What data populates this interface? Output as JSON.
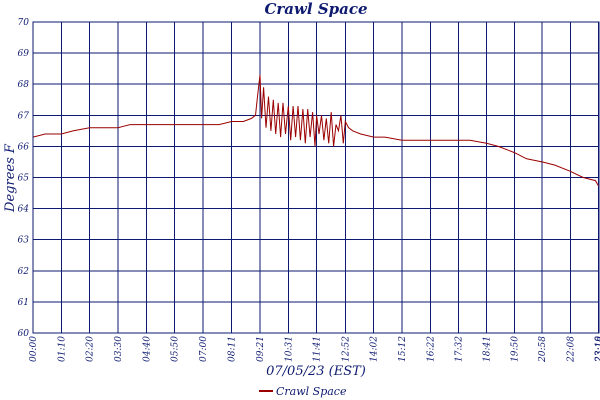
{
  "chart_data": {
    "type": "line",
    "title": "Crawl Space",
    "xlabel": "07/05/23 (EST)",
    "ylabel": "Degrees F",
    "ylim": [
      60,
      70
    ],
    "yticks": [
      "60",
      "61",
      "62",
      "63",
      "64",
      "65",
      "66",
      "67",
      "68",
      "69",
      "70"
    ],
    "xticks": [
      "00:00",
      "01:10",
      "02:20",
      "03:30",
      "04:40",
      "05:50",
      "07:00",
      "08:11",
      "09:21",
      "10:31",
      "11:41",
      "12:52",
      "14:02",
      "15:12",
      "16:22",
      "17:32",
      "18:41",
      "19:50",
      "20:58",
      "22:08",
      "23:18",
      "23:19"
    ],
    "xrange": [
      "00:00",
      "23:19"
    ],
    "grid": true,
    "legend": "bottom-center",
    "series": [
      {
        "name": "Crawl Space",
        "color": "#9b0000",
        "x": [
          "00:00",
          "00:30",
          "01:10",
          "01:40",
          "02:20",
          "03:00",
          "03:30",
          "04:00",
          "04:40",
          "05:20",
          "05:50",
          "06:30",
          "07:00",
          "07:40",
          "08:11",
          "08:40",
          "09:00",
          "09:10",
          "09:15",
          "09:21",
          "09:25",
          "09:30",
          "09:36",
          "09:42",
          "09:48",
          "09:54",
          "10:00",
          "10:06",
          "10:12",
          "10:18",
          "10:24",
          "10:31",
          "10:37",
          "10:43",
          "10:49",
          "10:55",
          "11:01",
          "11:07",
          "11:13",
          "11:19",
          "11:25",
          "11:31",
          "11:37",
          "11:41",
          "11:47",
          "11:53",
          "11:59",
          "12:05",
          "12:11",
          "12:17",
          "12:23",
          "12:29",
          "12:35",
          "12:41",
          "12:47",
          "12:52",
          "13:00",
          "13:10",
          "13:30",
          "14:02",
          "14:30",
          "15:12",
          "15:40",
          "16:22",
          "16:50",
          "17:32",
          "18:00",
          "18:41",
          "19:10",
          "19:50",
          "20:20",
          "20:58",
          "21:30",
          "22:08",
          "22:40",
          "23:10",
          "23:19"
        ],
        "y": [
          66.3,
          66.4,
          66.4,
          66.5,
          66.6,
          66.6,
          66.6,
          66.7,
          66.7,
          66.7,
          66.7,
          66.7,
          66.7,
          66.7,
          66.8,
          66.8,
          66.9,
          67.0,
          67.6,
          68.3,
          66.9,
          67.9,
          66.6,
          67.6,
          66.5,
          67.5,
          66.4,
          67.4,
          66.3,
          67.4,
          66.4,
          67.3,
          66.2,
          67.3,
          66.3,
          67.3,
          66.2,
          67.2,
          66.1,
          67.2,
          66.3,
          67.1,
          66.0,
          67.0,
          66.4,
          67.0,
          66.2,
          66.9,
          66.1,
          67.1,
          66.0,
          66.7,
          66.5,
          67.0,
          66.1,
          66.8,
          66.6,
          66.5,
          66.4,
          66.3,
          66.3,
          66.2,
          66.2,
          66.2,
          66.2,
          66.2,
          66.2,
          66.1,
          66.0,
          65.8,
          65.6,
          65.5,
          65.4,
          65.2,
          65.0,
          64.9,
          64.7
        ]
      }
    ]
  }
}
